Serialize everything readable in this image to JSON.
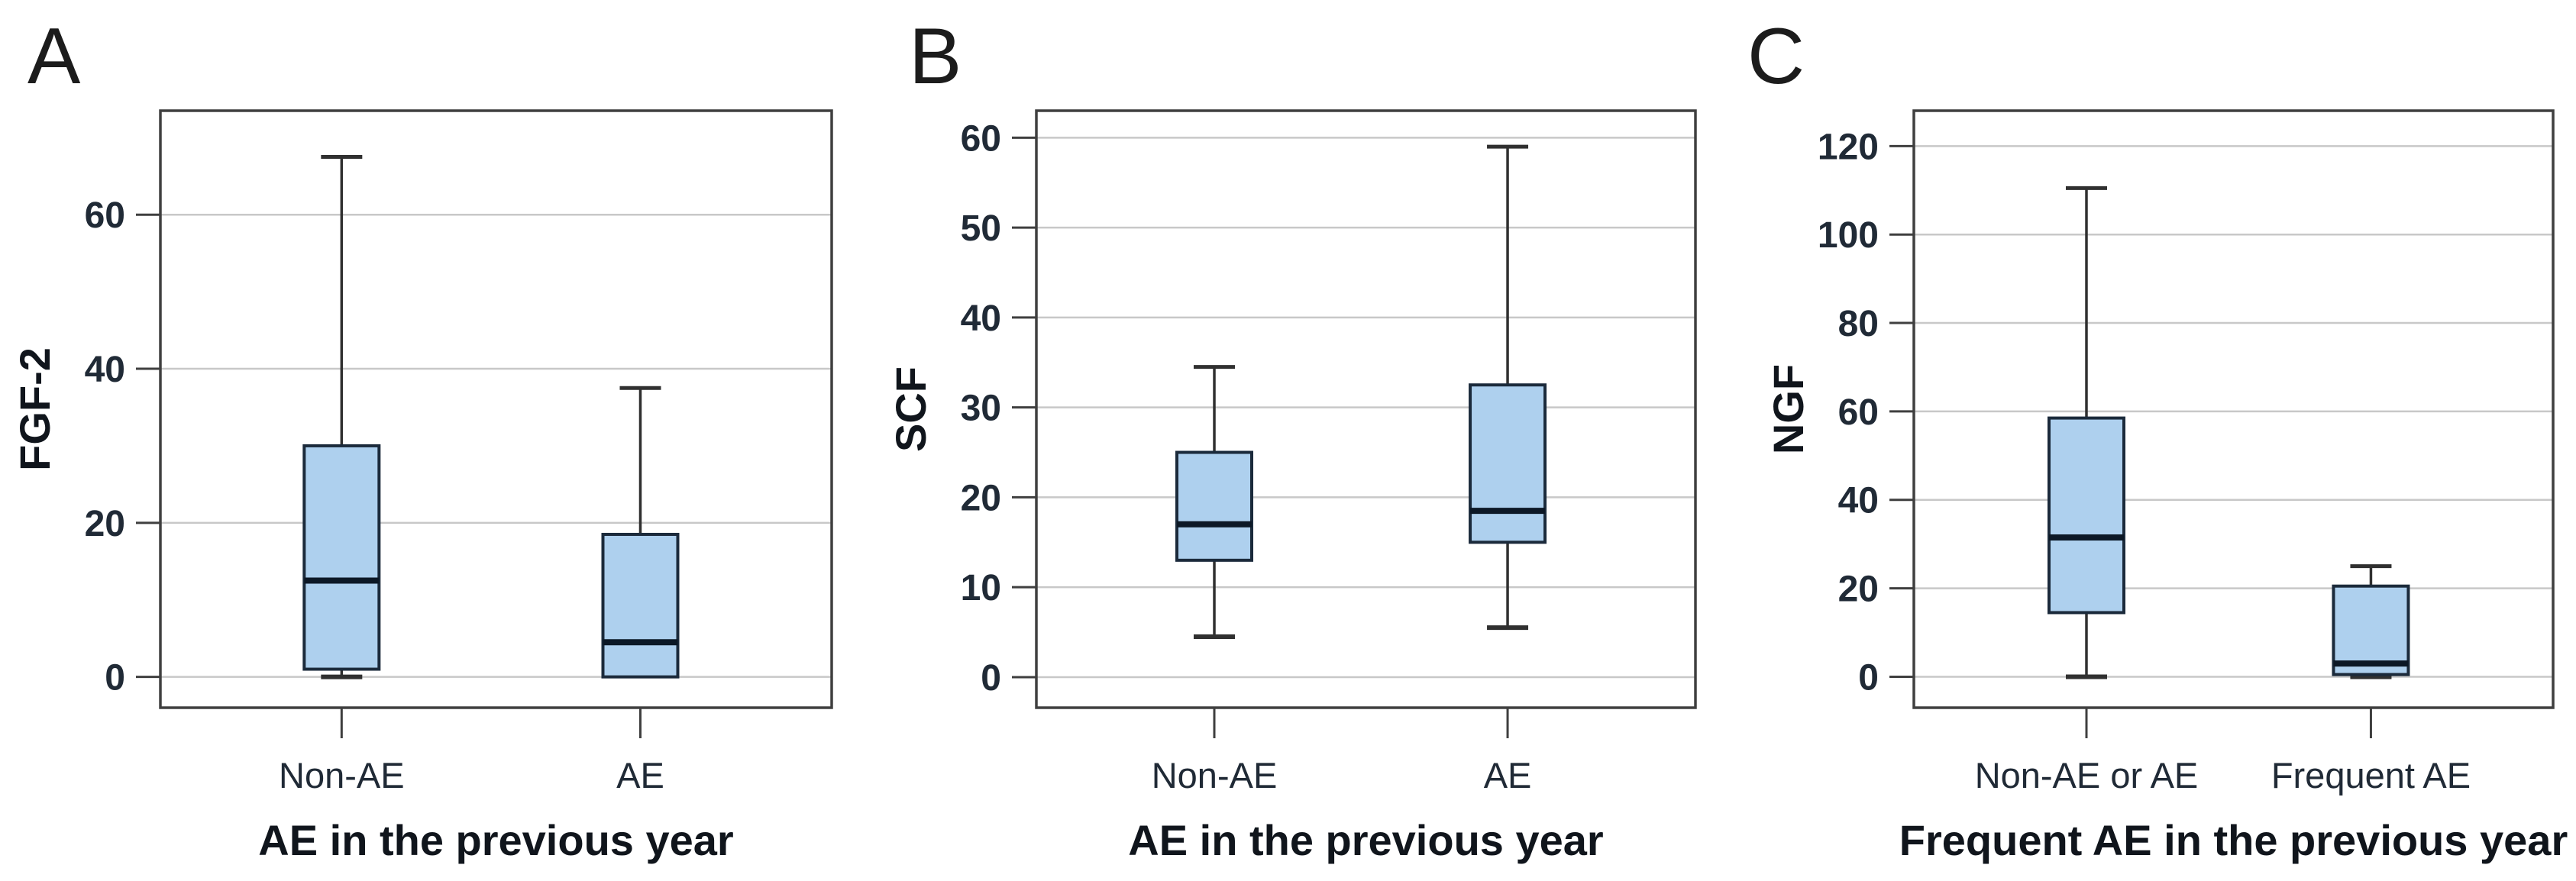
{
  "figure": {
    "background": "#ffffff",
    "description": "Three-panel box plot figure comparing growth factor levels by asthma exacerbation history"
  },
  "colors": {
    "box_fill": "#aed0ee",
    "box_border": "#1b2a3b",
    "median_line": "#0c1826",
    "whisker": "#303030",
    "grid_line": "#c8c8c8",
    "frame": "#3f3f3f",
    "tick_label": "#202a36",
    "category_label": "#202a36",
    "axis_title": "#10151c",
    "panel_letter": "#1c1c1c",
    "background": "#ffffff"
  },
  "chart_data": [
    {
      "type": "boxplot",
      "panel_label": "A",
      "ylabel": "FGF-2",
      "xlabel": "AE in the previous year",
      "categories": [
        "Non-AE",
        "AE"
      ],
      "yticks": [
        0,
        20,
        40,
        60
      ],
      "ylim": [
        -4,
        73.5
      ],
      "grid": true,
      "legend_position": "none",
      "series": [
        {
          "category": "Non-AE",
          "whisker_low": 0,
          "q1": 1,
          "median": 12.5,
          "q3": 30,
          "whisker_high": 67.5
        },
        {
          "category": "AE",
          "whisker_low": 0,
          "q1": 0,
          "median": 4.5,
          "q3": 18.5,
          "whisker_high": 37.5
        }
      ]
    },
    {
      "type": "boxplot",
      "panel_label": "B",
      "ylabel": "SCF",
      "xlabel": "AE in the previous year",
      "categories": [
        "Non-AE",
        "AE"
      ],
      "yticks": [
        0,
        10,
        20,
        30,
        40,
        50,
        60
      ],
      "ylim": [
        -3.4,
        63
      ],
      "grid": true,
      "legend_position": "none",
      "series": [
        {
          "category": "Non-AE",
          "whisker_low": 4.5,
          "q1": 13,
          "median": 17,
          "q3": 25,
          "whisker_high": 34.5
        },
        {
          "category": "AE",
          "whisker_low": 5.5,
          "q1": 15,
          "median": 18.5,
          "q3": 32.5,
          "whisker_high": 59
        }
      ]
    },
    {
      "type": "boxplot",
      "panel_label": "C",
      "ylabel": "NGF",
      "xlabel": "Frequent AE in the previous year",
      "categories": [
        "Non-AE or AE",
        "Frequent AE"
      ],
      "yticks": [
        0,
        20,
        40,
        60,
        80,
        100,
        120
      ],
      "ylim": [
        -7,
        128
      ],
      "grid": true,
      "legend_position": "none",
      "series": [
        {
          "category": "Non-AE or AE",
          "whisker_low": 0,
          "q1": 14.5,
          "median": 31.5,
          "q3": 58.5,
          "whisker_high": 110.5
        },
        {
          "category": "Frequent AE",
          "whisker_low": 0,
          "q1": 0.5,
          "median": 3,
          "q3": 20.5,
          "whisker_high": 25
        }
      ]
    }
  ]
}
